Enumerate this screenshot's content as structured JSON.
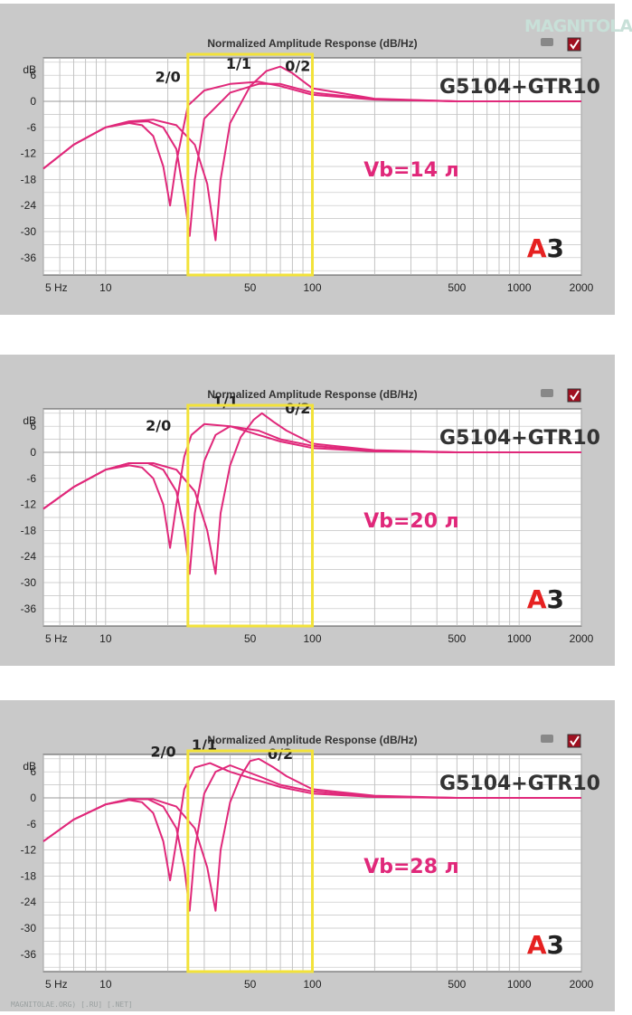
{
  "watermark": "MAGNITOLA",
  "footer": "MAGNITOLAE.ORG) [.RU] [.NET]",
  "chart_data": [
    {
      "type": "line",
      "title": "Normalized Amplitude Response (dB/Hz)",
      "model": "G5104+GTR10",
      "volume": "Vb=14 л",
      "logo": "A3",
      "x_scale": "log",
      "xlim": [
        5,
        2000
      ],
      "ylim": [
        -40,
        10
      ],
      "y_ticks": [
        6,
        0,
        -6,
        -12,
        -18,
        -24,
        -30,
        -36
      ],
      "y_unit": "dB",
      "x_ticks": [
        "5 Hz",
        "10",
        "50",
        "100",
        "500",
        "1000",
        "2000"
      ],
      "highlight_range": [
        25,
        100
      ],
      "grid": true,
      "series": [
        {
          "name": "2/0",
          "x": [
            5,
            7,
            10,
            13,
            15,
            17,
            19,
            20.5,
            22,
            25,
            30,
            40,
            55,
            70,
            100,
            200,
            500,
            2000
          ],
          "y": [
            -15.5,
            -10,
            -6,
            -5,
            -5.5,
            -8,
            -15,
            -24,
            -14,
            -1,
            2.5,
            4,
            4.5,
            3.5,
            1.5,
            0.4,
            0,
            0
          ]
        },
        {
          "name": "1/1",
          "x": [
            5,
            7,
            10,
            13,
            16,
            19,
            22,
            24,
            25.5,
            27,
            30,
            40,
            55,
            70,
            100,
            200,
            500,
            2000
          ],
          "y": [
            -15.5,
            -10,
            -6,
            -4.8,
            -4.6,
            -6,
            -11,
            -22,
            -31,
            -18,
            -4,
            2,
            4,
            4,
            2,
            0.5,
            0,
            0
          ]
        },
        {
          "name": "0/2",
          "x": [
            5,
            7,
            10,
            13,
            17,
            22,
            27,
            31,
            34,
            36,
            40,
            50,
            60,
            70,
            80,
            100,
            200,
            500,
            2000
          ],
          "y": [
            -15.5,
            -10,
            -6,
            -4.6,
            -4.2,
            -5.5,
            -10,
            -19,
            -32,
            -18,
            -5,
            3.5,
            7,
            8,
            6.5,
            3,
            0.6,
            0,
            0
          ]
        }
      ],
      "labels": [
        {
          "series": "2/0",
          "text": "2/0",
          "x": 20,
          "y": 4.5
        },
        {
          "series": "1/1",
          "text": "1/1",
          "x": 44,
          "y": 7.5
        },
        {
          "series": "0/2",
          "text": "0/2",
          "x": 85,
          "y": 7
        }
      ]
    },
    {
      "type": "line",
      "title": "Normalized Amplitude Response (dB/Hz)",
      "model": "G5104+GTR10",
      "volume": "Vb=20 л",
      "logo": "A3",
      "x_scale": "log",
      "xlim": [
        5,
        2000
      ],
      "ylim": [
        -40,
        10
      ],
      "y_ticks": [
        6,
        0,
        -6,
        -12,
        -18,
        -24,
        -30,
        -36
      ],
      "y_unit": "dB",
      "x_ticks": [
        "5 Hz",
        "10",
        "50",
        "100",
        "500",
        "1000",
        "2000"
      ],
      "highlight_range": [
        25,
        100
      ],
      "grid": true,
      "series": [
        {
          "name": "2/0",
          "x": [
            5,
            7,
            10,
            13,
            15,
            17,
            19,
            20.5,
            22,
            24,
            26,
            30,
            40,
            55,
            70,
            100,
            200,
            500,
            2000
          ],
          "y": [
            -13,
            -8,
            -4,
            -3,
            -3.5,
            -6,
            -12,
            -22,
            -12,
            -1,
            4,
            6.5,
            6,
            4,
            2.5,
            1,
            0.2,
            0,
            0
          ]
        },
        {
          "name": "1/1",
          "x": [
            5,
            7,
            10,
            13,
            16,
            19,
            22,
            24,
            25.5,
            27,
            30,
            34,
            40,
            55,
            70,
            100,
            200,
            500,
            2000
          ],
          "y": [
            -13,
            -8,
            -4,
            -2.5,
            -2.5,
            -4,
            -9,
            -18,
            -28,
            -14,
            -2,
            4,
            6,
            5,
            3,
            1.5,
            0.3,
            0,
            0
          ]
        },
        {
          "name": "0/2",
          "x": [
            5,
            7,
            10,
            13,
            17,
            22,
            27,
            31,
            34,
            36,
            40,
            45,
            52,
            57,
            65,
            75,
            100,
            200,
            500,
            2000
          ],
          "y": [
            -13,
            -8,
            -4,
            -2.5,
            -2.5,
            -4,
            -9,
            -18,
            -28,
            -14,
            -3,
            3.5,
            7.5,
            9,
            7,
            5,
            2,
            0.5,
            0,
            0
          ]
        }
      ],
      "labels": [
        {
          "series": "2/0",
          "text": "2/0",
          "x": 18,
          "y": 5
        },
        {
          "series": "1/1",
          "text": "1/1",
          "x": 38,
          "y": 10.5
        },
        {
          "series": "0/2",
          "text": "0/2",
          "x": 85,
          "y": 9
        }
      ]
    },
    {
      "type": "line",
      "title": "Normalized Amplitude Response (dB/Hz)",
      "model": "G5104+GTR10",
      "volume": "Vb=28 л",
      "logo": "A3",
      "x_scale": "log",
      "xlim": [
        5,
        2000
      ],
      "ylim": [
        -40,
        10
      ],
      "y_ticks": [
        6,
        0,
        -6,
        -12,
        -18,
        -24,
        -30,
        -36
      ],
      "y_unit": "dB",
      "x_ticks": [
        "5 Hz",
        "10",
        "50",
        "100",
        "500",
        "1000",
        "2000"
      ],
      "highlight_range": [
        25,
        100
      ],
      "grid": true,
      "series": [
        {
          "name": "2/0",
          "x": [
            5,
            7,
            10,
            13,
            15,
            17,
            19,
            20.5,
            22,
            24,
            27,
            32,
            40,
            55,
            70,
            100,
            200,
            500,
            2000
          ],
          "y": [
            -10,
            -5,
            -1.5,
            -0.5,
            -1,
            -3.5,
            -10,
            -19,
            -10,
            2,
            7,
            8,
            6,
            4,
            2.5,
            1,
            0.2,
            0,
            0
          ]
        },
        {
          "name": "1/1",
          "x": [
            5,
            7,
            10,
            13,
            16,
            19,
            22,
            24,
            25.5,
            27,
            30,
            34,
            40,
            55,
            70,
            100,
            200,
            500,
            2000
          ],
          "y": [
            -10,
            -5,
            -1.5,
            -0.3,
            -0.3,
            -2,
            -7,
            -16,
            -26,
            -12,
            1,
            6,
            7.5,
            5,
            3,
            1.5,
            0.3,
            0,
            0
          ]
        },
        {
          "name": "0/2",
          "x": [
            5,
            7,
            10,
            13,
            17,
            22,
            27,
            31,
            34,
            36,
            40,
            45,
            50,
            55,
            65,
            75,
            100,
            200,
            500,
            2000
          ],
          "y": [
            -10,
            -5,
            -1.5,
            -0.3,
            -0.3,
            -2,
            -7,
            -16,
            -26,
            -12,
            -1,
            5,
            8.5,
            9,
            7,
            5,
            2,
            0.5,
            0,
            0
          ]
        }
      ],
      "labels": [
        {
          "series": "2/0",
          "text": "2/0",
          "x": 19,
          "y": 9.5
        },
        {
          "series": "1/1",
          "text": "1/1",
          "x": 30,
          "y": 11
        },
        {
          "series": "0/2",
          "text": "0/2",
          "x": 70,
          "y": 9
        }
      ]
    }
  ]
}
